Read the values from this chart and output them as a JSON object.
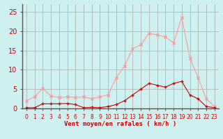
{
  "x": [
    0,
    1,
    2,
    3,
    4,
    5,
    6,
    7,
    8,
    9,
    10,
    11,
    12,
    13,
    14,
    15,
    16,
    17,
    18,
    19,
    20,
    21,
    22,
    23
  ],
  "wind_avg": [
    0.2,
    0.2,
    1.2,
    1.2,
    1.2,
    1.3,
    1.0,
    0.2,
    0.3,
    0.2,
    0.5,
    1.0,
    2.0,
    3.5,
    5.0,
    6.5,
    6.0,
    5.5,
    6.5,
    7.0,
    3.5,
    2.5,
    0.5,
    0.2
  ],
  "wind_gust": [
    2.0,
    3.0,
    5.2,
    3.2,
    2.8,
    3.0,
    2.8,
    3.0,
    2.5,
    3.0,
    3.5,
    8.0,
    11.0,
    15.5,
    16.5,
    19.5,
    19.0,
    18.5,
    17.0,
    23.5,
    13.0,
    8.0,
    2.5,
    0.5
  ],
  "color_avg": "#cc0000",
  "color_gust": "#ff9999",
  "bg_color": "#cff0f0",
  "grid_color": "#aaaaaa",
  "xlabel": "Vent moyen/en rafales ( km/h )",
  "ylabel_ticks": [
    0,
    5,
    10,
    15,
    20,
    25
  ],
  "ylim": [
    0,
    27
  ],
  "xlim_min": -0.5,
  "xlim_max": 23.5,
  "tick_color": "#cc0000",
  "xlabel_color": "#cc0000",
  "label_fontsize": 6.5,
  "ytick_fontsize": 7,
  "xtick_fontsize": 5.5
}
